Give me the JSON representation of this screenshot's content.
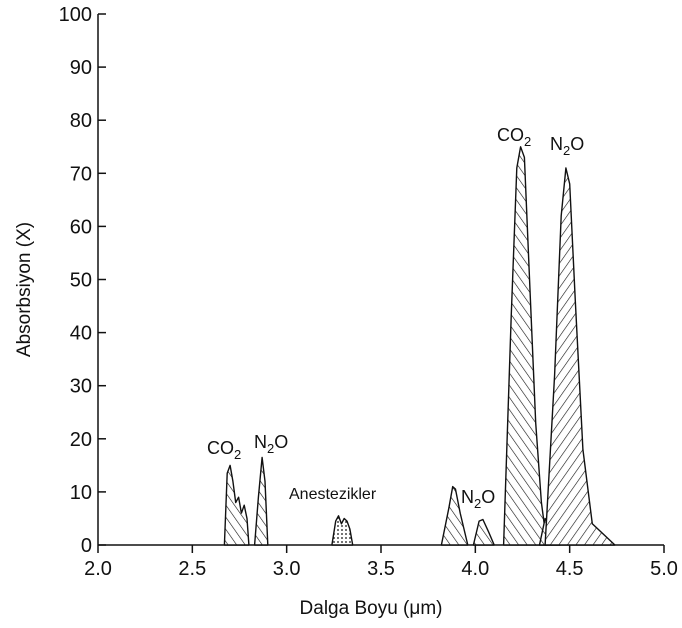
{
  "chart_data": {
    "type": "area",
    "title": "",
    "xlabel": "Dalga Boyu (μm)",
    "ylabel": "Absorbsiyon (X)",
    "xlim": [
      2.0,
      5.0
    ],
    "ylim": [
      0,
      100
    ],
    "x_ticks": [
      "2.0",
      "2.5",
      "3.0",
      "3.5",
      "4.0",
      "4.5",
      "5.0"
    ],
    "y_ticks": [
      "0",
      "10",
      "20",
      "30",
      "40",
      "50",
      "60",
      "70",
      "80",
      "90",
      "100"
    ],
    "grid": false,
    "colors": {
      "ink": "#111111",
      "background": "#ffffff"
    },
    "peaks": [
      {
        "id": "co2-a",
        "label": "CO",
        "label_sub": "2",
        "pattern": "hatch-ns",
        "points": [
          [
            2.67,
            0
          ],
          [
            2.685,
            13.5
          ],
          [
            2.7,
            15
          ],
          [
            2.715,
            12
          ],
          [
            2.73,
            8
          ],
          [
            2.745,
            9
          ],
          [
            2.76,
            6
          ],
          [
            2.775,
            7.5
          ],
          [
            2.79,
            5
          ],
          [
            2.8,
            0
          ]
        ]
      },
      {
        "id": "n2o-a",
        "label": "N",
        "label_sub": "2",
        "label_suffix": "O",
        "pattern": "hatch-ns",
        "points": [
          [
            2.83,
            0
          ],
          [
            2.85,
            9
          ],
          [
            2.87,
            16.5
          ],
          [
            2.885,
            12
          ],
          [
            2.9,
            0
          ]
        ]
      },
      {
        "id": "anest",
        "label": "Anestezikler",
        "pattern": "dots",
        "points": [
          [
            3.24,
            0
          ],
          [
            3.26,
            4.5
          ],
          [
            3.275,
            5.5
          ],
          [
            3.29,
            4
          ],
          [
            3.305,
            5
          ],
          [
            3.32,
            4.5
          ],
          [
            3.335,
            3
          ],
          [
            3.35,
            0
          ]
        ]
      },
      {
        "id": "n2o-small-1",
        "pattern": "hatch-ns",
        "points": [
          [
            3.82,
            0
          ],
          [
            3.86,
            7
          ],
          [
            3.88,
            11
          ],
          [
            3.895,
            10.5
          ],
          [
            3.92,
            6
          ],
          [
            3.96,
            0
          ]
        ]
      },
      {
        "id": "n2o-small-2",
        "label": "N",
        "label_sub": "2",
        "label_suffix": "O",
        "pattern": "hatch-ns",
        "points": [
          [
            3.99,
            0
          ],
          [
            4.02,
            4.5
          ],
          [
            4.04,
            4.8
          ],
          [
            4.07,
            2.5
          ],
          [
            4.1,
            0
          ]
        ]
      },
      {
        "id": "co2-b",
        "label": "CO",
        "label_sub": "2",
        "pattern": "hatch-ns",
        "points": [
          [
            4.15,
            0
          ],
          [
            4.19,
            43
          ],
          [
            4.22,
            71
          ],
          [
            4.24,
            75
          ],
          [
            4.26,
            73
          ],
          [
            4.29,
            48
          ],
          [
            4.32,
            23
          ],
          [
            4.35,
            8
          ],
          [
            4.38,
            0
          ]
        ]
      },
      {
        "id": "co2-iso",
        "pattern": "hatch-ns",
        "points": [
          [
            4.34,
            0
          ],
          [
            4.37,
            5
          ],
          [
            4.385,
            4
          ],
          [
            4.4,
            5.5
          ],
          [
            4.42,
            3
          ],
          [
            4.45,
            0
          ]
        ]
      },
      {
        "id": "n2o-b",
        "label": "N",
        "label_sub": "2",
        "label_suffix": "O",
        "pattern": "hatch-sn",
        "points": [
          [
            4.37,
            0
          ],
          [
            4.42,
            32
          ],
          [
            4.455,
            62
          ],
          [
            4.48,
            71
          ],
          [
            4.5,
            68
          ],
          [
            4.53,
            46
          ],
          [
            4.57,
            18
          ],
          [
            4.62,
            4
          ],
          [
            4.74,
            0
          ]
        ]
      }
    ]
  }
}
